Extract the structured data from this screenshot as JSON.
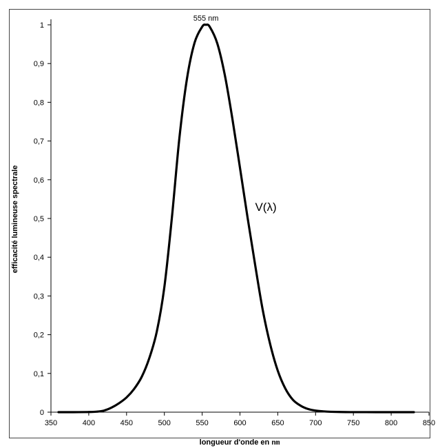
{
  "chart_data": {
    "type": "line",
    "ylabel": "efficacité lumineuse spectrale",
    "xlabel": "longueur d'onde en ",
    "xlabel_unit": "nm",
    "xlim": [
      350,
      850
    ],
    "ylim": [
      0,
      1
    ],
    "x_ticks": [
      350,
      400,
      450,
      500,
      550,
      600,
      650,
      700,
      750,
      800,
      850
    ],
    "x_tick_labels": [
      "350",
      "400",
      "450",
      "500",
      "550",
      "600",
      "650",
      "700",
      "750",
      "800",
      "850"
    ],
    "y_ticks": [
      0,
      0.1,
      0.2,
      0.3,
      0.4,
      0.5,
      0.6,
      0.7,
      0.8,
      0.9,
      1
    ],
    "y_tick_labels": [
      "0",
      "0,1",
      "0,2",
      "0,3",
      "0,4",
      "0,5",
      "0,6",
      "0,7",
      "0,8",
      "0,9",
      "1"
    ],
    "grid": false,
    "legend": "none",
    "annotations": [
      {
        "text": "555 nm",
        "x": 555,
        "y": 1.0
      },
      {
        "text": "V(λ)",
        "x": 620,
        "y": 0.53
      }
    ],
    "series": [
      {
        "name": "V(λ)",
        "color": "#000000",
        "x": [
          360,
          380,
          400,
          410,
          420,
          430,
          440,
          450,
          460,
          470,
          480,
          490,
          500,
          510,
          520,
          530,
          540,
          550,
          555,
          560,
          570,
          580,
          590,
          600,
          610,
          620,
          630,
          640,
          650,
          660,
          670,
          680,
          690,
          700,
          710,
          720,
          740,
          760,
          780,
          800,
          830
        ],
        "values": [
          0.0,
          0.0,
          0.0004,
          0.0012,
          0.004,
          0.0116,
          0.023,
          0.038,
          0.06,
          0.091,
          0.139,
          0.208,
          0.323,
          0.503,
          0.71,
          0.862,
          0.954,
          0.995,
          1.0,
          0.995,
          0.952,
          0.87,
          0.757,
          0.631,
          0.503,
          0.381,
          0.265,
          0.175,
          0.107,
          0.061,
          0.032,
          0.017,
          0.0082,
          0.0041,
          0.0021,
          0.001,
          0.0002,
          0.0001,
          0.0,
          0.0,
          0.0
        ]
      }
    ]
  }
}
